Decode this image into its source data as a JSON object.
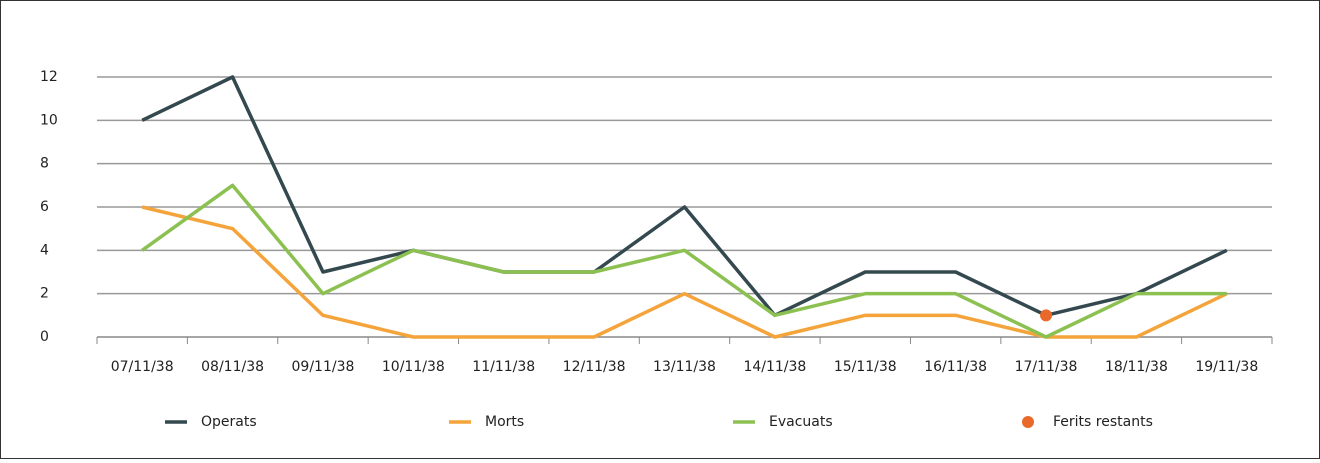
{
  "chart_data": {
    "type": "line",
    "categories": [
      "07/11/38",
      "08/11/38",
      "09/11/38",
      "10/11/38",
      "11/11/38",
      "12/11/38",
      "13/11/38",
      "14/11/38",
      "15/11/38",
      "16/11/38",
      "17/11/38",
      "18/11/38",
      "19/11/38"
    ],
    "series": [
      {
        "name": "Operats",
        "color": "#34494f",
        "values": [
          10,
          12,
          3,
          4,
          3,
          3,
          6,
          1,
          3,
          3,
          1,
          2,
          4
        ]
      },
      {
        "name": "Morts",
        "color": "#f4a43a",
        "values": [
          6,
          5,
          1,
          0,
          0,
          0,
          2,
          0,
          1,
          1,
          0,
          0,
          2
        ]
      },
      {
        "name": "Evacuats",
        "color": "#8cc152",
        "values": [
          4,
          7,
          2,
          4,
          3,
          3,
          4,
          1,
          2,
          2,
          0,
          2,
          2
        ]
      },
      {
        "name": "Ferits restants",
        "color": "#e8692a",
        "values": [
          null,
          null,
          null,
          null,
          null,
          null,
          null,
          null,
          null,
          null,
          1,
          null,
          null
        ]
      }
    ],
    "ylim": [
      0,
      12
    ],
    "yticks": [
      0,
      2,
      4,
      6,
      8,
      10,
      12
    ],
    "grid": true,
    "legend": "bottom"
  }
}
